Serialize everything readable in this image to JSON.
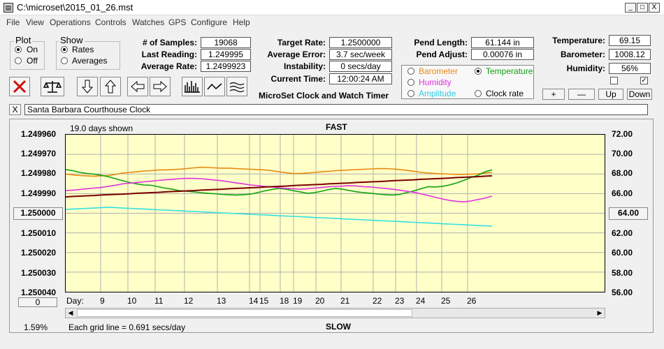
{
  "window": {
    "title": "C:\\microset\\2015_01_26.mst",
    "min": "_",
    "max": "□",
    "close": "X"
  },
  "menu": [
    "File",
    "View",
    "Operations",
    "Controls",
    "Watches",
    "GPS",
    "Configure",
    "Help"
  ],
  "plot_group": {
    "title": "Plot",
    "on": "On",
    "off": "Off"
  },
  "show_group": {
    "title": "Show",
    "rates": "Rates",
    "averages": "Averages"
  },
  "stats": {
    "samples_label": "# of Samples:",
    "samples": "19068",
    "last_label": "Last Reading:",
    "last": "1.249995",
    "avg_label": "Average Rate:",
    "avg": "1.2499923"
  },
  "rates": {
    "target_label": "Target Rate:",
    "target": "1.2500000",
    "error_label": "Average Error:",
    "error": "3.7 sec/week",
    "instab_label": "Instability:",
    "instab": "0 secs/day",
    "time_label": "Current Time:",
    "time": "12:00:24 AM",
    "app_name": "MicroSet Clock and Watch Timer"
  },
  "pend": {
    "length_label": "Pend Length:",
    "length": "61.144 in",
    "adjust_label": "Pend Adjust:",
    "adjust": "0.00076 in"
  },
  "sensor_options": {
    "barometer": "Barometer",
    "temperature": "Temperature",
    "humidity": "Humidity",
    "amplitude": "Amplitude",
    "clock_rate": "Clock rate"
  },
  "environment": {
    "temp_label": "Temperature:",
    "temp": "69.15",
    "baro_label": "Barometer:",
    "baro": "1008.12",
    "hum_label": "Humidity:",
    "hum": "56%",
    "check2": "✓"
  },
  "adjust_buttons": {
    "plus": "+",
    "minus": "—",
    "up": "Up",
    "down": "Down"
  },
  "clock_close": "X",
  "clock_name": "Santa Barbara Courthouse Clock",
  "chart": {
    "days_shown": "19.0 days shown",
    "fast": "FAST",
    "slow": "SLOW",
    "grid_note": "Each grid line = 0.691 secs/day",
    "percent": "1.59%",
    "left_box": "1.250000",
    "right_box": "64.00",
    "bottom_box": "0",
    "day_prefix": "Day:"
  },
  "chart_data": {
    "type": "line",
    "left_ticks": [
      "1.249960",
      "1.249970",
      "1.249980",
      "1.249990",
      "1.250000",
      "1.250010",
      "1.250020",
      "1.250030",
      "1.250040"
    ],
    "right_ticks": [
      "72.00",
      "70.00",
      "68.00",
      "66.00",
      "64.00",
      "62.00",
      "60.00",
      "58.00",
      "56.00"
    ],
    "days": [
      "9",
      "10",
      "11",
      "12",
      "13",
      "14",
      "15",
      "18",
      "19",
      "20",
      "21",
      "22",
      "23",
      "24",
      "25",
      "26"
    ],
    "colors": {
      "rate": "#7a0000",
      "temperature": "#10a010",
      "barometer": "#e88a10",
      "humidity": "#e030e0",
      "amplitude": "#30e0e0",
      "grid": "#b0b0b0"
    },
    "series": [
      {
        "key": "barometer",
        "values": [
          0.749,
          0.744,
          0.74,
          0.738,
          0.736,
          0.738,
          0.74,
          0.747,
          0.756,
          0.76,
          0.764,
          0.769,
          0.771,
          0.776,
          0.776,
          0.778,
          0.78,
          0.784,
          0.789,
          0.793,
          0.791,
          0.789,
          0.787,
          0.787,
          0.784,
          0.782,
          0.78,
          0.778,
          0.776,
          0.771,
          0.764,
          0.758,
          0.753,
          0.753,
          0.756,
          0.76,
          0.764,
          0.767,
          0.771,
          0.773,
          0.776,
          0.778,
          0.78,
          0.782,
          0.784,
          0.784,
          0.782,
          0.778,
          0.773,
          0.767,
          0.76,
          0.756,
          0.753,
          0.751,
          0.749,
          0.747,
          0.747,
          0.749,
          0.751,
          0.756,
          0.76
        ]
      },
      {
        "key": "temperature",
        "values": [
          0.778,
          0.771,
          0.76,
          0.753,
          0.749,
          0.742,
          0.733,
          0.72,
          0.707,
          0.696,
          0.687,
          0.68,
          0.678,
          0.669,
          0.66,
          0.653,
          0.644,
          0.64,
          0.636,
          0.631,
          0.627,
          0.624,
          0.62,
          0.618,
          0.616,
          0.618,
          0.622,
          0.631,
          0.642,
          0.651,
          0.658,
          0.653,
          0.644,
          0.636,
          0.627,
          0.631,
          0.64,
          0.651,
          0.658,
          0.653,
          0.644,
          0.636,
          0.631,
          0.627,
          0.622,
          0.618,
          0.616,
          0.62,
          0.631,
          0.642,
          0.656,
          0.669,
          0.667,
          0.671,
          0.68,
          0.693,
          0.709,
          0.727,
          0.742,
          0.764,
          0.776
        ]
      },
      {
        "key": "humidity",
        "values": [
          0.644,
          0.647,
          0.651,
          0.656,
          0.66,
          0.664,
          0.671,
          0.678,
          0.687,
          0.691,
          0.696,
          0.7,
          0.704,
          0.709,
          0.713,
          0.716,
          0.72,
          0.722,
          0.722,
          0.72,
          0.716,
          0.711,
          0.707,
          0.7,
          0.693,
          0.687,
          0.68,
          0.676,
          0.671,
          0.667,
          0.662,
          0.658,
          0.656,
          0.653,
          0.656,
          0.66,
          0.664,
          0.669,
          0.671,
          0.673,
          0.676,
          0.673,
          0.669,
          0.667,
          0.662,
          0.658,
          0.653,
          0.647,
          0.64,
          0.633,
          0.624,
          0.613,
          0.602,
          0.591,
          0.582,
          0.576,
          0.573,
          0.578,
          0.587,
          0.596,
          0.609
        ]
      },
      {
        "key": "amplitude",
        "values": [
          0.524,
          0.527,
          0.529,
          0.531,
          0.533,
          0.536,
          0.538,
          0.536,
          0.533,
          0.531,
          0.529,
          0.527,
          0.524,
          0.522,
          0.52,
          0.518,
          0.516,
          0.513,
          0.511,
          0.509,
          0.507,
          0.504,
          0.502,
          0.5,
          0.498,
          0.496,
          0.493,
          0.491,
          0.489,
          0.487,
          0.484,
          0.482,
          0.48,
          0.478,
          0.476,
          0.473,
          0.471,
          0.469,
          0.467,
          0.464,
          0.462,
          0.46,
          0.458,
          0.456,
          0.453,
          0.451,
          0.449,
          0.447,
          0.444,
          0.442,
          0.44,
          0.438,
          0.436,
          0.433,
          0.431,
          0.429,
          0.427,
          0.424,
          0.422,
          0.42,
          0.418
        ]
      },
      {
        "key": "rate",
        "values": [
          0.604,
          0.607,
          0.609,
          0.611,
          0.613,
          0.616,
          0.618,
          0.62,
          0.622,
          0.624,
          0.627,
          0.629,
          0.631,
          0.633,
          0.636,
          0.638,
          0.64,
          0.642,
          0.644,
          0.647,
          0.649,
          0.651,
          0.653,
          0.656,
          0.658,
          0.66,
          0.662,
          0.664,
          0.667,
          0.669,
          0.671,
          0.673,
          0.676,
          0.678,
          0.68,
          0.682,
          0.684,
          0.687,
          0.689,
          0.691,
          0.693,
          0.696,
          0.698,
          0.7,
          0.702,
          0.704,
          0.707,
          0.709,
          0.711,
          0.713,
          0.716,
          0.718,
          0.72,
          0.722,
          0.724,
          0.727,
          0.729,
          0.731,
          0.733,
          0.736,
          0.738
        ]
      }
    ]
  }
}
